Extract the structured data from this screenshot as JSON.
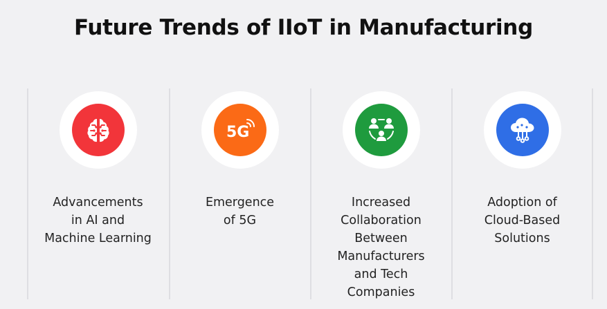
{
  "header": {
    "title": "Future Trends of IIoT in Manufacturing"
  },
  "trends": [
    {
      "label": "Advancements\nin AI and\nMachine Learning",
      "icon": "brain-icon",
      "color": "#f2353a"
    },
    {
      "label": "Emergence\nof 5G",
      "icon": "5g-icon",
      "icon_text": "5G",
      "color": "#fb6a16"
    },
    {
      "label": "Increased\nCollaboration\nBetween\nManufacturers\nand Tech\nCompanies",
      "icon": "collaboration-icon",
      "color": "#1f9b3e"
    },
    {
      "label": "Adoption of\nCloud-Based\nSolutions",
      "icon": "cloud-network-icon",
      "color": "#2f6ee6"
    }
  ]
}
